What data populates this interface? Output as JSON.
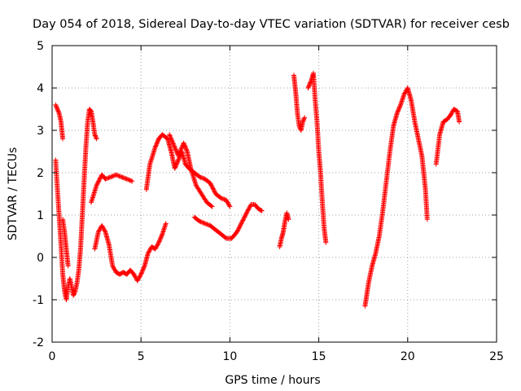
{
  "chart_data": {
    "type": "scatter",
    "title": "Day 054 of 2018, Sidereal Day-to-day VTEC variation (SDTVAR) for receiver cesb",
    "xlabel": "GPS time / hours",
    "ylabel": "SDTVAR / TECUs",
    "xlim": [
      0,
      25
    ],
    "ylim": [
      -2,
      5
    ],
    "x_ticks": [
      "0",
      "5",
      "10",
      "15",
      "20",
      "25"
    ],
    "y_ticks": [
      "-2",
      "-1",
      "0",
      "1",
      "2",
      "3",
      "4",
      "5"
    ],
    "grid": true,
    "marker": "+",
    "series": [
      {
        "name": "SDTVAR",
        "color": "#ff0000",
        "segments": [
          [
            [
              0.2,
              3.6
            ],
            [
              0.4,
              3.4
            ],
            [
              0.5,
              3.2
            ],
            [
              0.6,
              2.8
            ]
          ],
          [
            [
              0.2,
              2.3
            ],
            [
              0.3,
              1.6
            ],
            [
              0.5,
              0.3
            ],
            [
              0.6,
              -0.4
            ],
            [
              0.7,
              -0.8
            ],
            [
              0.8,
              -1.0
            ],
            [
              0.9,
              -0.7
            ],
            [
              1.0,
              -0.5
            ],
            [
              1.1,
              -0.7
            ],
            [
              1.2,
              -0.9
            ],
            [
              1.3,
              -0.8
            ],
            [
              1.4,
              -0.6
            ],
            [
              1.5,
              -0.3
            ],
            [
              1.6,
              0.2
            ],
            [
              1.7,
              1.0
            ],
            [
              1.8,
              1.8
            ],
            [
              1.9,
              2.6
            ],
            [
              2.0,
              3.2
            ],
            [
              2.1,
              3.5
            ],
            [
              2.2,
              3.45
            ],
            [
              2.3,
              3.2
            ],
            [
              2.4,
              2.9
            ],
            [
              2.5,
              2.8
            ]
          ],
          [
            [
              0.6,
              0.9
            ],
            [
              0.7,
              0.6
            ],
            [
              0.8,
              0.2
            ],
            [
              0.9,
              -0.2
            ]
          ],
          [
            [
              2.2,
              1.3
            ],
            [
              2.5,
              1.7
            ],
            [
              2.8,
              1.95
            ],
            [
              3.0,
              1.85
            ],
            [
              3.3,
              1.9
            ],
            [
              3.6,
              1.95
            ],
            [
              3.9,
              1.9
            ],
            [
              4.2,
              1.85
            ],
            [
              4.5,
              1.8
            ]
          ],
          [
            [
              2.4,
              0.2
            ],
            [
              2.6,
              0.6
            ],
            [
              2.8,
              0.75
            ],
            [
              3.0,
              0.6
            ],
            [
              3.2,
              0.3
            ],
            [
              3.4,
              -0.2
            ],
            [
              3.6,
              -0.35
            ],
            [
              3.8,
              -0.4
            ],
            [
              4.0,
              -0.35
            ],
            [
              4.2,
              -0.4
            ],
            [
              4.4,
              -0.3
            ],
            [
              4.6,
              -0.4
            ],
            [
              4.8,
              -0.55
            ],
            [
              5.0,
              -0.4
            ],
            [
              5.2,
              -0.2
            ],
            [
              5.4,
              0.1
            ],
            [
              5.6,
              0.25
            ],
            [
              5.8,
              0.2
            ],
            [
              6.0,
              0.35
            ],
            [
              6.2,
              0.55
            ],
            [
              6.4,
              0.8
            ]
          ],
          [
            [
              5.3,
              1.6
            ],
            [
              5.5,
              2.2
            ],
            [
              5.8,
              2.6
            ],
            [
              6.0,
              2.8
            ],
            [
              6.2,
              2.9
            ],
            [
              6.5,
              2.8
            ],
            [
              6.7,
              2.5
            ],
            [
              6.9,
              2.1
            ],
            [
              7.1,
              2.3
            ],
            [
              7.3,
              2.5
            ],
            [
              7.5,
              2.2
            ],
            [
              7.7,
              2.1
            ],
            [
              8.0,
              2.0
            ],
            [
              8.3,
              1.9
            ],
            [
              8.6,
              1.85
            ],
            [
              8.9,
              1.75
            ],
            [
              9.2,
              1.5
            ],
            [
              9.5,
              1.4
            ],
            [
              9.8,
              1.35
            ],
            [
              10.0,
              1.2
            ]
          ],
          [
            [
              6.6,
              2.9
            ],
            [
              6.9,
              2.6
            ],
            [
              7.1,
              2.4
            ],
            [
              7.4,
              2.7
            ],
            [
              7.6,
              2.5
            ],
            [
              7.8,
              2.1
            ],
            [
              8.1,
              1.7
            ],
            [
              8.4,
              1.5
            ],
            [
              8.7,
              1.3
            ],
            [
              9.0,
              1.2
            ]
          ],
          [
            [
              8.0,
              0.95
            ],
            [
              8.3,
              0.85
            ],
            [
              8.6,
              0.8
            ],
            [
              8.9,
              0.75
            ],
            [
              9.2,
              0.65
            ],
            [
              9.5,
              0.55
            ],
            [
              9.8,
              0.45
            ],
            [
              10.1,
              0.45
            ],
            [
              10.4,
              0.6
            ],
            [
              10.7,
              0.85
            ],
            [
              11.0,
              1.1
            ],
            [
              11.2,
              1.25
            ],
            [
              11.4,
              1.25
            ],
            [
              11.6,
              1.15
            ],
            [
              11.8,
              1.1
            ]
          ],
          [
            [
              12.8,
              0.25
            ],
            [
              12.9,
              0.45
            ],
            [
              13.0,
              0.6
            ],
            [
              13.1,
              0.85
            ],
            [
              13.2,
              1.05
            ],
            [
              13.3,
              0.9
            ]
          ],
          [
            [
              13.6,
              4.3
            ],
            [
              13.7,
              3.9
            ],
            [
              13.8,
              3.4
            ],
            [
              13.9,
              3.1
            ],
            [
              14.0,
              3.0
            ],
            [
              14.1,
              3.2
            ],
            [
              14.2,
              3.3
            ]
          ],
          [
            [
              14.4,
              4.0
            ],
            [
              14.6,
              4.2
            ],
            [
              14.7,
              4.35
            ],
            [
              14.8,
              3.7
            ],
            [
              14.9,
              3.2
            ],
            [
              15.0,
              2.5
            ],
            [
              15.1,
              2.0
            ],
            [
              15.2,
              1.3
            ],
            [
              15.3,
              0.7
            ],
            [
              15.4,
              0.35
            ]
          ],
          [
            [
              17.6,
              -1.15
            ],
            [
              17.8,
              -0.6
            ],
            [
              18.0,
              -0.2
            ],
            [
              18.2,
              0.1
            ],
            [
              18.4,
              0.5
            ],
            [
              18.6,
              1.1
            ],
            [
              18.8,
              1.8
            ],
            [
              19.0,
              2.5
            ],
            [
              19.2,
              3.1
            ],
            [
              19.4,
              3.4
            ],
            [
              19.6,
              3.6
            ],
            [
              19.8,
              3.85
            ],
            [
              20.0,
              4.0
            ],
            [
              20.2,
              3.7
            ],
            [
              20.4,
              3.2
            ],
            [
              20.6,
              2.8
            ],
            [
              20.8,
              2.4
            ],
            [
              21.0,
              1.6
            ],
            [
              21.1,
              0.9
            ]
          ],
          [
            [
              21.6,
              2.2
            ],
            [
              21.8,
              2.9
            ],
            [
              22.0,
              3.2
            ],
            [
              22.2,
              3.25
            ],
            [
              22.4,
              3.35
            ],
            [
              22.6,
              3.5
            ],
            [
              22.8,
              3.45
            ],
            [
              22.9,
              3.2
            ]
          ]
        ]
      }
    ]
  }
}
